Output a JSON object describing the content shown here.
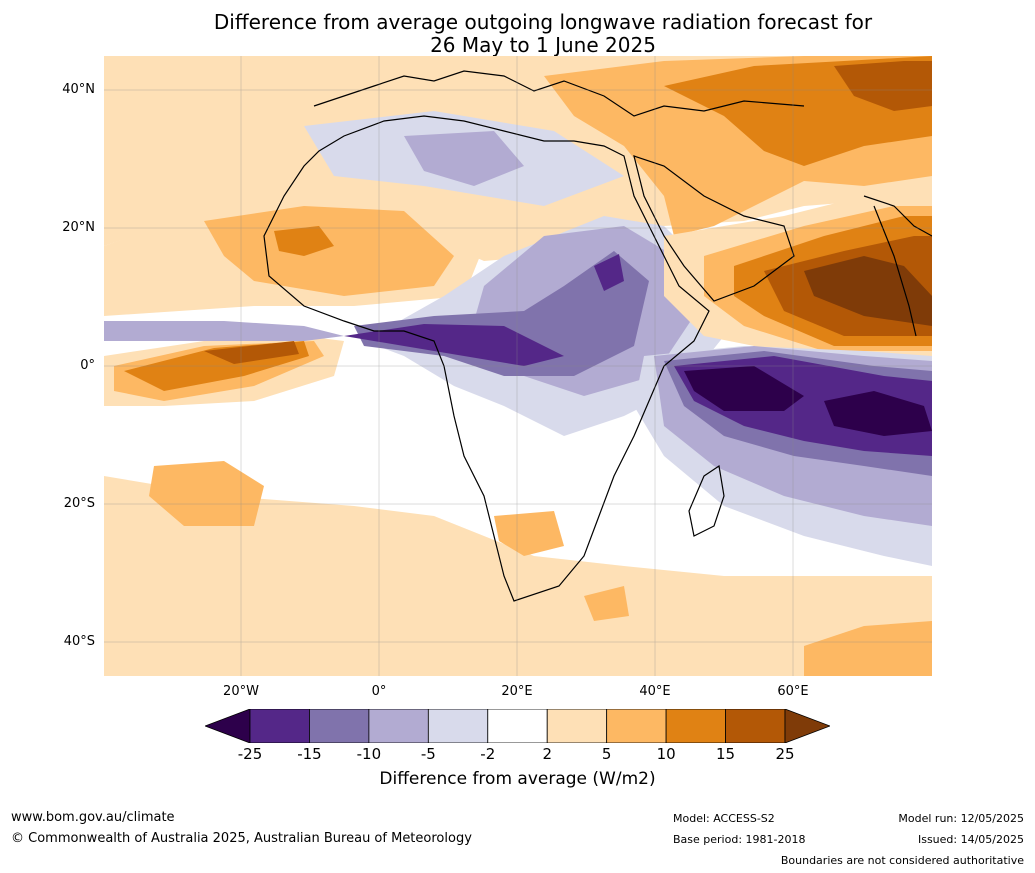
{
  "title_line1": "Difference from average outgoing longwave radiation forecast for",
  "title_line2": "26 May to 1 June 2025",
  "lat_labels": [
    "40°N",
    "20°N",
    "0°",
    "20°S",
    "40°S"
  ],
  "lon_labels": [
    "20°W",
    "0°",
    "20°E",
    "40°E",
    "60°E"
  ],
  "colorbar": {
    "ticks": [
      "-25",
      "-15",
      "-10",
      "-5",
      "-2",
      "2",
      "5",
      "10",
      "15",
      "25"
    ],
    "colors": [
      "#2d004b",
      "#542788",
      "#8073ac",
      "#b2abd2",
      "#d8daeb",
      "#ffffff",
      "#fee0b6",
      "#fdb863",
      "#e08214",
      "#b35806",
      "#7f3b08"
    ],
    "label": "Difference from average (W/m2)"
  },
  "footer": {
    "website": "www.bom.gov.au/climate",
    "copyright": "© Commonwealth of Australia 2025, Australian Bureau of Meteorology",
    "model": "Model: ACCESS-S2",
    "base_period": "Base period: 1981-2018",
    "model_run": "Model run: 12/05/2025",
    "issued": "Issued: 14/05/2025",
    "disclaimer": "Boundaries are not considered authoritative"
  }
}
